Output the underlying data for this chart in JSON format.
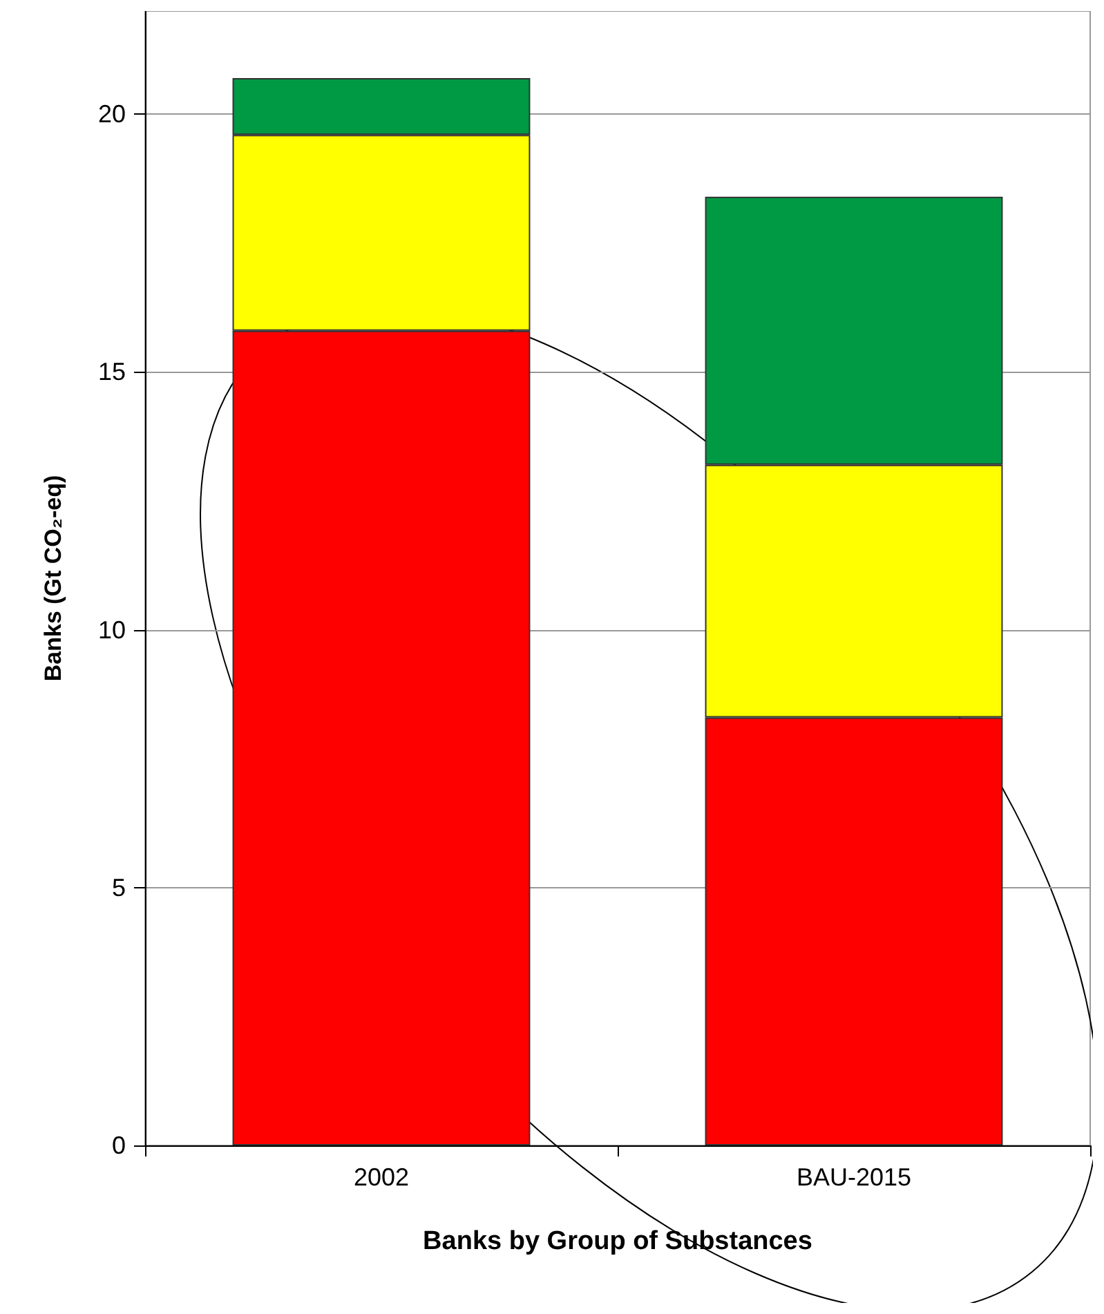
{
  "chart_data": {
    "type": "bar",
    "stacked": true,
    "xlabel": "Banks by Group of Substances",
    "ylabel": "Banks (Gt CO₂-eq)",
    "categories": [
      "2002",
      "BAU-2015"
    ],
    "series": [
      {
        "color": "#ff0000",
        "values": [
          15.8,
          8.3
        ]
      },
      {
        "color": "#ffff00",
        "values": [
          3.8,
          4.9
        ]
      },
      {
        "color": "#009944",
        "values": [
          1.1,
          5.2
        ]
      }
    ],
    "ylim": [
      0,
      22
    ],
    "yticks": [
      0,
      5,
      10,
      15,
      20
    ],
    "grid": "y"
  }
}
